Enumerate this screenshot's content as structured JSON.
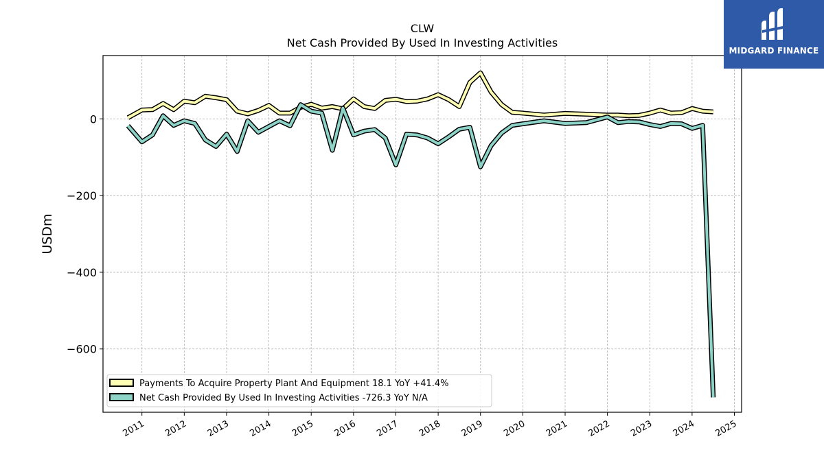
{
  "brand": {
    "name": "MIDGARD FINANCE",
    "color": "#2f5aa8"
  },
  "chart_data": {
    "type": "line",
    "title": "CLW",
    "subtitle": "Net Cash Provided By Used In Investing Activities",
    "ylabel": "USDm",
    "xlabel": "",
    "ylim": [
      -765,
      165
    ],
    "xlim": [
      2010.08,
      2025.17
    ],
    "yticks": [
      0,
      -200,
      -400,
      -600
    ],
    "ytick_labels": [
      "0",
      "−200",
      "−400",
      "−600"
    ],
    "xticks": [
      2011,
      2012,
      2013,
      2014,
      2015,
      2016,
      2017,
      2018,
      2019,
      2020,
      2021,
      2022,
      2023,
      2024,
      2025
    ],
    "xtick_labels": [
      "2011",
      "2012",
      "2013",
      "2014",
      "2015",
      "2016",
      "2017",
      "2018",
      "2019",
      "2020",
      "2021",
      "2022",
      "2023",
      "2024",
      "2025"
    ],
    "grid": true,
    "legend_position": "lower-left",
    "series": [
      {
        "name": "Payments To Acquire Property Plant And Equipment  18.1 YoY +41.4%",
        "color": "#ffffb3",
        "x": [
          2010.67,
          2011.0,
          2011.25,
          2011.5,
          2011.75,
          2012.0,
          2012.25,
          2012.5,
          2012.75,
          2013.0,
          2013.25,
          2013.5,
          2013.75,
          2014.0,
          2014.25,
          2014.5,
          2014.75,
          2015.0,
          2015.25,
          2015.5,
          2015.75,
          2016.0,
          2016.25,
          2016.5,
          2016.75,
          2017.0,
          2017.25,
          2017.5,
          2017.75,
          2018.0,
          2018.25,
          2018.5,
          2018.75,
          2019.0,
          2019.25,
          2019.5,
          2019.75,
          2020.0,
          2020.5,
          2021.0,
          2021.5,
          2022.0,
          2022.25,
          2022.5,
          2022.75,
          2023.0,
          2023.25,
          2023.5,
          2023.75,
          2024.0,
          2024.25,
          2024.5
        ],
        "values": [
          3,
          23,
          24,
          40,
          24,
          46,
          42,
          59,
          55,
          50,
          20,
          13,
          22,
          35,
          15,
          15,
          30,
          38,
          28,
          32,
          26,
          52,
          32,
          27,
          48,
          51,
          45,
          46,
          52,
          63,
          50,
          32,
          95,
          120,
          70,
          37,
          17,
          15,
          10,
          14,
          12,
          10,
          10,
          8,
          9,
          15,
          23,
          15,
          16,
          27,
          20,
          18.1
        ]
      },
      {
        "name": "Net Cash Provided By Used In Investing Activities  -726.3 YoY N/A",
        "color": "#8dd3c7",
        "x": [
          2010.67,
          2011.0,
          2011.25,
          2011.5,
          2011.75,
          2012.0,
          2012.25,
          2012.5,
          2012.75,
          2013.0,
          2013.25,
          2013.5,
          2013.75,
          2014.0,
          2014.25,
          2014.5,
          2014.75,
          2015.0,
          2015.25,
          2015.5,
          2015.75,
          2016.0,
          2016.25,
          2016.5,
          2016.75,
          2017.0,
          2017.25,
          2017.5,
          2017.75,
          2018.0,
          2018.25,
          2018.5,
          2018.75,
          2019.0,
          2019.25,
          2019.5,
          2019.75,
          2020.0,
          2020.5,
          2021.0,
          2021.5,
          2022.0,
          2022.25,
          2022.5,
          2022.75,
          2023.0,
          2023.25,
          2023.5,
          2023.75,
          2024.0,
          2024.25,
          2024.5
        ],
        "values": [
          -18,
          -60,
          -42,
          8,
          -17,
          -5,
          -12,
          -55,
          -72,
          -40,
          -85,
          -5,
          -35,
          -20,
          -5,
          -18,
          37,
          20,
          15,
          -82,
          28,
          -42,
          -32,
          -28,
          -50,
          -120,
          -40,
          -42,
          -50,
          -65,
          -47,
          -27,
          -22,
          -125,
          -70,
          -37,
          -17,
          -13,
          -5,
          -12,
          -10,
          5,
          -10,
          -7,
          -8,
          -15,
          -20,
          -12,
          -13,
          -25,
          -17,
          -726.3
        ]
      }
    ]
  }
}
